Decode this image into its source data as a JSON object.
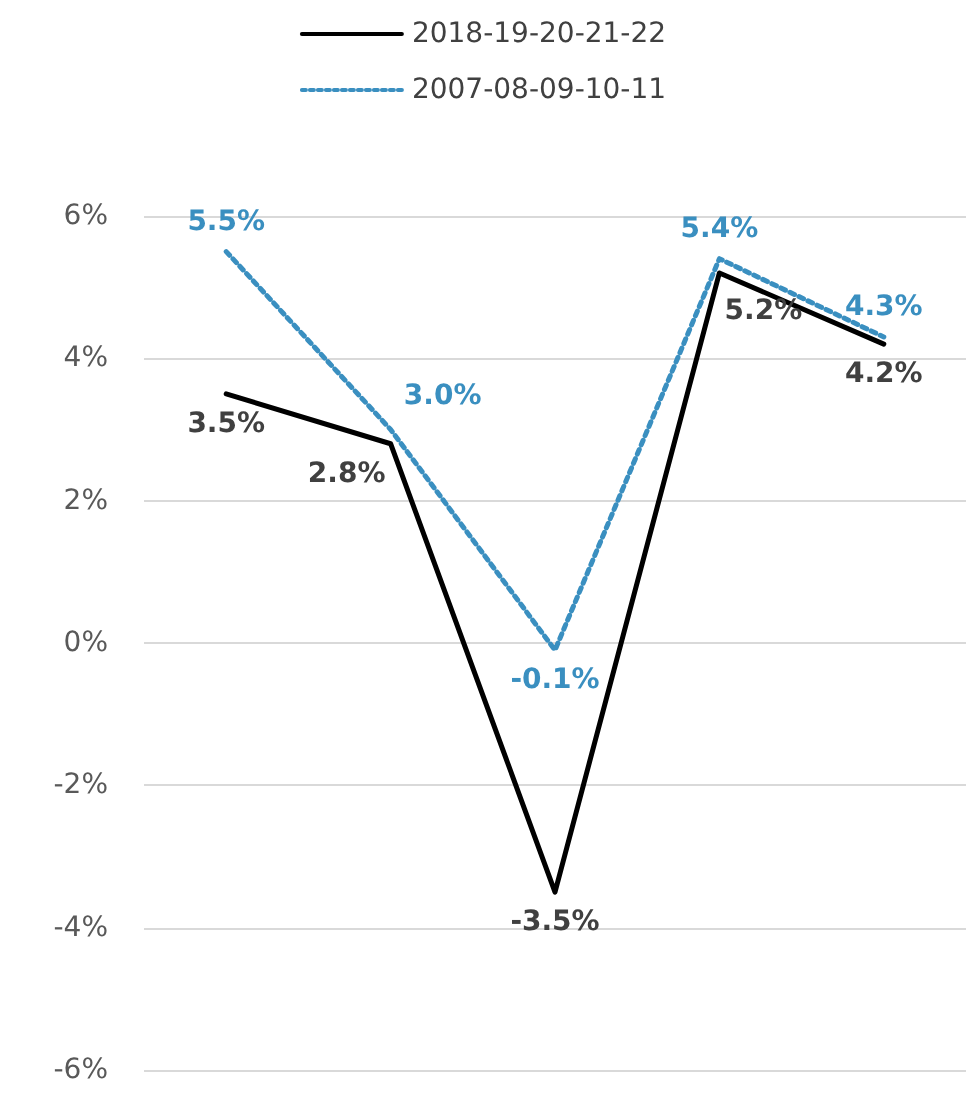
{
  "chart_data": {
    "type": "line",
    "categories": [
      null,
      null,
      null,
      null,
      null
    ],
    "series": [
      {
        "name": "2018-19-20-21-22",
        "color": "#000000",
        "line_style": "solid",
        "values": [
          3.5,
          2.8,
          -3.5,
          5.2,
          4.2
        ],
        "value_labels": [
          "3.5%",
          "2.8%",
          "-3.5%",
          "5.2%",
          "4.2%"
        ]
      },
      {
        "name": "2007-08-09-10-11",
        "color": "#3a8fc0",
        "line_style": "dotted",
        "values": [
          5.5,
          3.0,
          -0.1,
          5.4,
          4.3
        ],
        "value_labels": [
          "5.5%",
          "3.0%",
          "-0.1%",
          "5.4%",
          "4.3%"
        ]
      }
    ],
    "ylim": [
      -6,
      6
    ],
    "yticks": [
      {
        "value": -6,
        "label": "-6%"
      },
      {
        "value": -4,
        "label": "-4%"
      },
      {
        "value": -2,
        "label": "-2%"
      },
      {
        "value": 0,
        "label": "0%"
      },
      {
        "value": 2,
        "label": "2%"
      },
      {
        "value": 4,
        "label": "4%"
      },
      {
        "value": 6,
        "label": "6%"
      }
    ],
    "grid": "y",
    "legend": "top",
    "marker": "none",
    "tick_labels": "y"
  }
}
